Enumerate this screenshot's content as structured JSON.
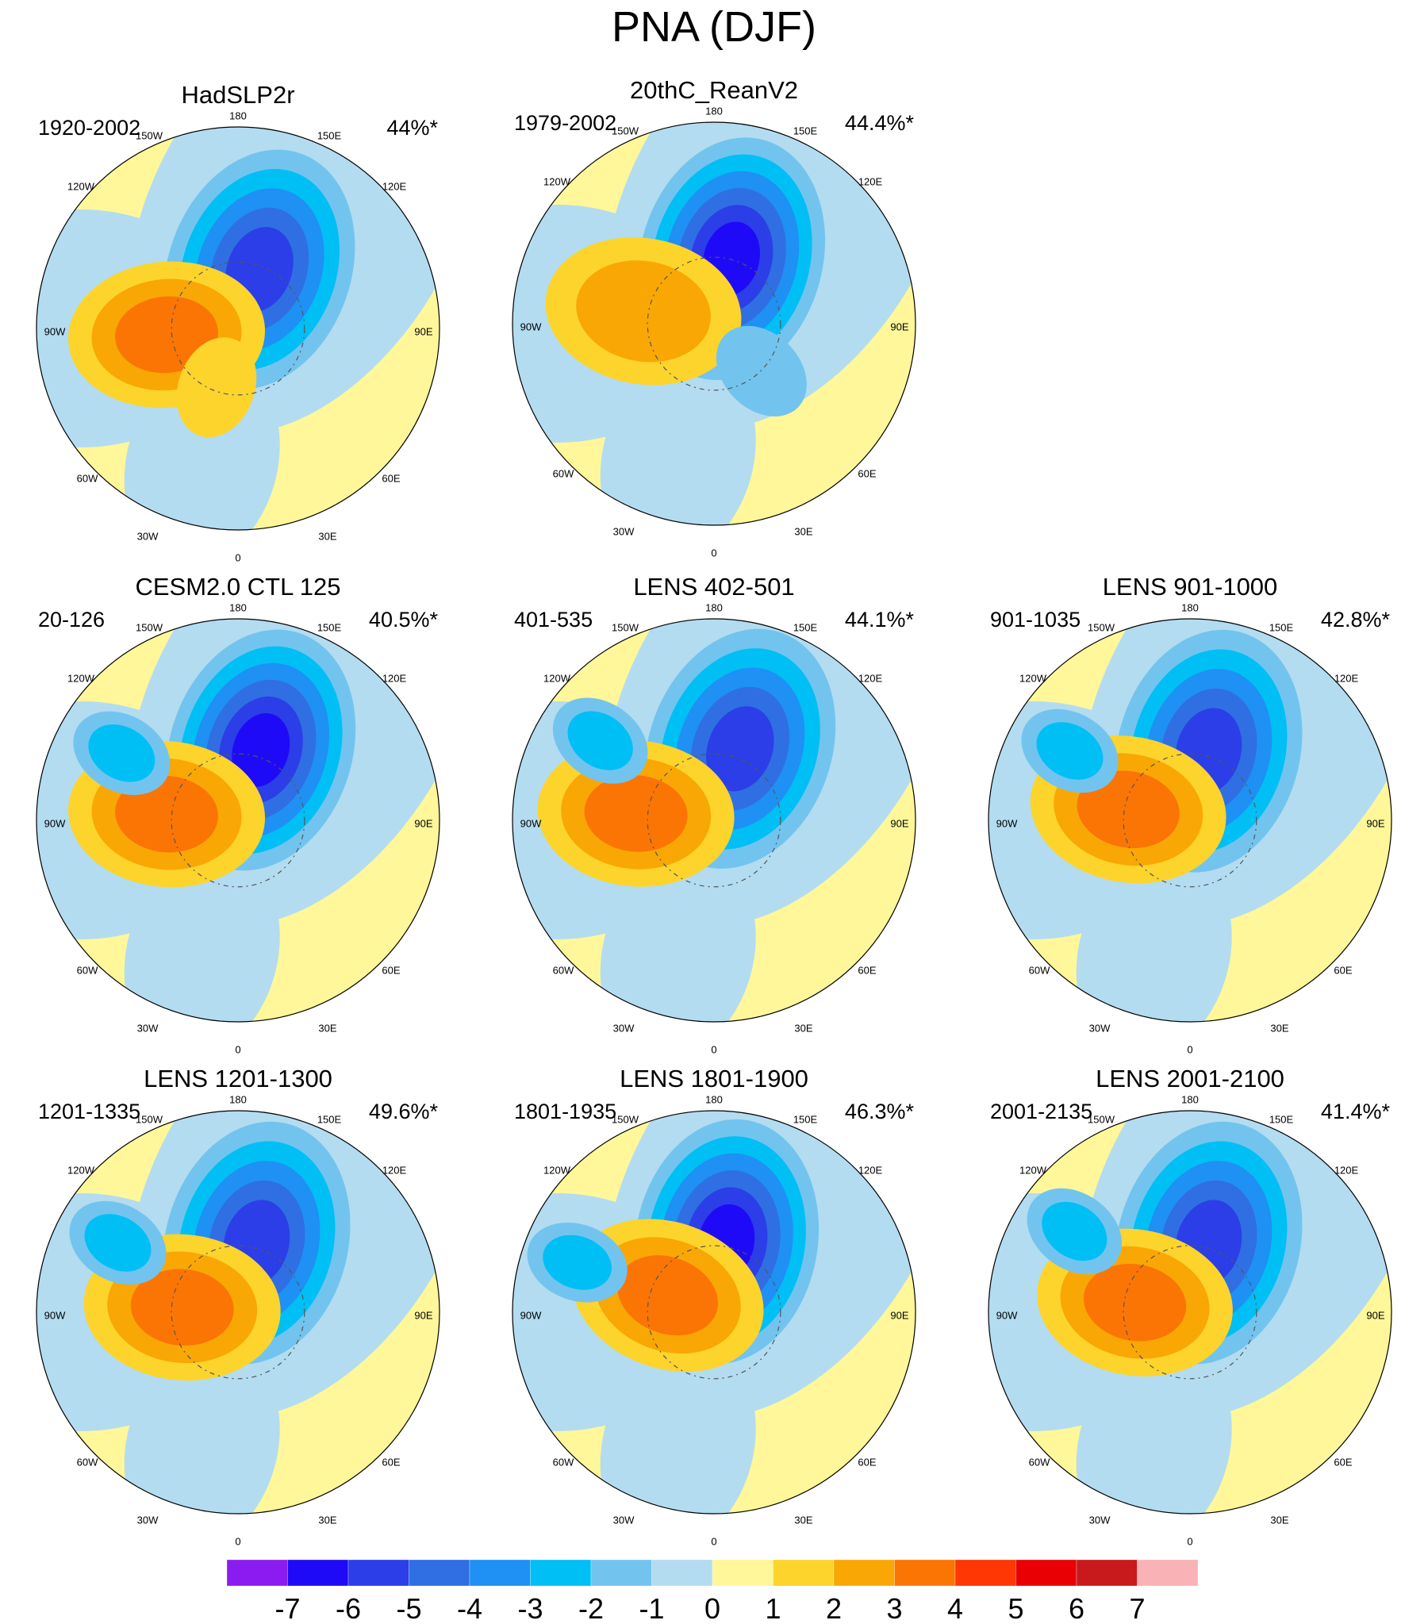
{
  "title": "PNA (DJF)",
  "chart_data": {
    "type": "heatmap",
    "title": "PNA (DJF)",
    "projection": "north-polar-stereographic",
    "longitude_labels": [
      "180",
      "150E",
      "120E",
      "90E",
      "60E",
      "30E",
      "0",
      "30W",
      "60W",
      "90W",
      "120W",
      "150W"
    ],
    "colorbar": {
      "levels": [
        "-7",
        "-6",
        "-5",
        "-4",
        "-3",
        "-2",
        "-1",
        "0",
        "1",
        "2",
        "3",
        "4",
        "5",
        "6",
        "7"
      ],
      "colors": [
        "#8a1cf0",
        "#1f0af7",
        "#2b3ee8",
        "#2f6fe3",
        "#1f90f4",
        "#00bff4",
        "#72c4ef",
        "#b3dcf1",
        "#fff79a",
        "#fcd42c",
        "#f9a705",
        "#fb7505",
        "#fe3705",
        "#e90004",
        "#c81a1d",
        "#f9b2b5"
      ]
    },
    "panels": [
      {
        "title": "HadSLP2r",
        "period": "1920-2002",
        "variance": "44%*",
        "pattern": {
          "low": -5,
          "low_lon": 160,
          "low_colat": 28,
          "high": 3,
          "high_lon": -85,
          "high_colat": 32,
          "a2": 1,
          "a2_lon": -20,
          "a2_colat": 28
        }
      },
      {
        "title": "20thC_ReanV2",
        "period": "1979-2002",
        "variance": "44.4%*",
        "pattern": {
          "low": -6,
          "low_lon": 165,
          "low_colat": 30,
          "high": 2,
          "high_lon": -100,
          "high_colat": 32,
          "a2": -1,
          "a2_lon": 45,
          "a2_colat": 30
        }
      },
      {
        "title": "CESM2.0 CTL 125",
        "period": "20-126",
        "variance": "40.5%*",
        "pattern": {
          "low": -6,
          "low_lon": 162,
          "low_colat": 33,
          "high": 3,
          "high_lon": -95,
          "high_colat": 32,
          "a2": -2,
          "a2_lon": -120,
          "a2_colat": 60
        }
      },
      {
        "title": "LENS 402-501",
        "period": "401-535",
        "variance": "44.1%*",
        "pattern": {
          "low": -5,
          "low_lon": 160,
          "low_colat": 34,
          "high": 3,
          "high_lon": -95,
          "high_colat": 35,
          "a2": -2,
          "a2_lon": -125,
          "a2_colat": 62
        }
      },
      {
        "title": "LENS 901-1000",
        "period": "901-1035",
        "variance": "42.8%*",
        "pattern": {
          "low": -5,
          "low_lon": 165,
          "low_colat": 32,
          "high": 3,
          "high_lon": -100,
          "high_colat": 28,
          "a2": -2,
          "a2_lon": -120,
          "a2_colat": 62
        }
      },
      {
        "title": "LENS 1201-1300",
        "period": "1201-1335",
        "variance": "49.6%*",
        "pattern": {
          "low": -5,
          "low_lon": 165,
          "low_colat": 32,
          "high": 3,
          "high_lon": -95,
          "high_colat": 25,
          "a2": -2,
          "a2_lon": -120,
          "a2_colat": 62
        }
      },
      {
        "title": "LENS 1801-1900",
        "period": "1801-1935",
        "variance": "46.3%*",
        "pattern": {
          "low": -6,
          "low_lon": 170,
          "low_colat": 32,
          "high": 3,
          "high_lon": -110,
          "high_colat": 22,
          "a2": -2,
          "a2_lon": -110,
          "a2_colat": 65
        }
      },
      {
        "title": "LENS 2001-2100",
        "period": "2001-2135",
        "variance": "41.4%*",
        "pattern": {
          "low": -5,
          "low_lon": 165,
          "low_colat": 32,
          "high": 3,
          "high_lon": -100,
          "high_colat": 25,
          "a2": -2,
          "a2_lon": -125,
          "a2_colat": 63
        }
      }
    ]
  }
}
